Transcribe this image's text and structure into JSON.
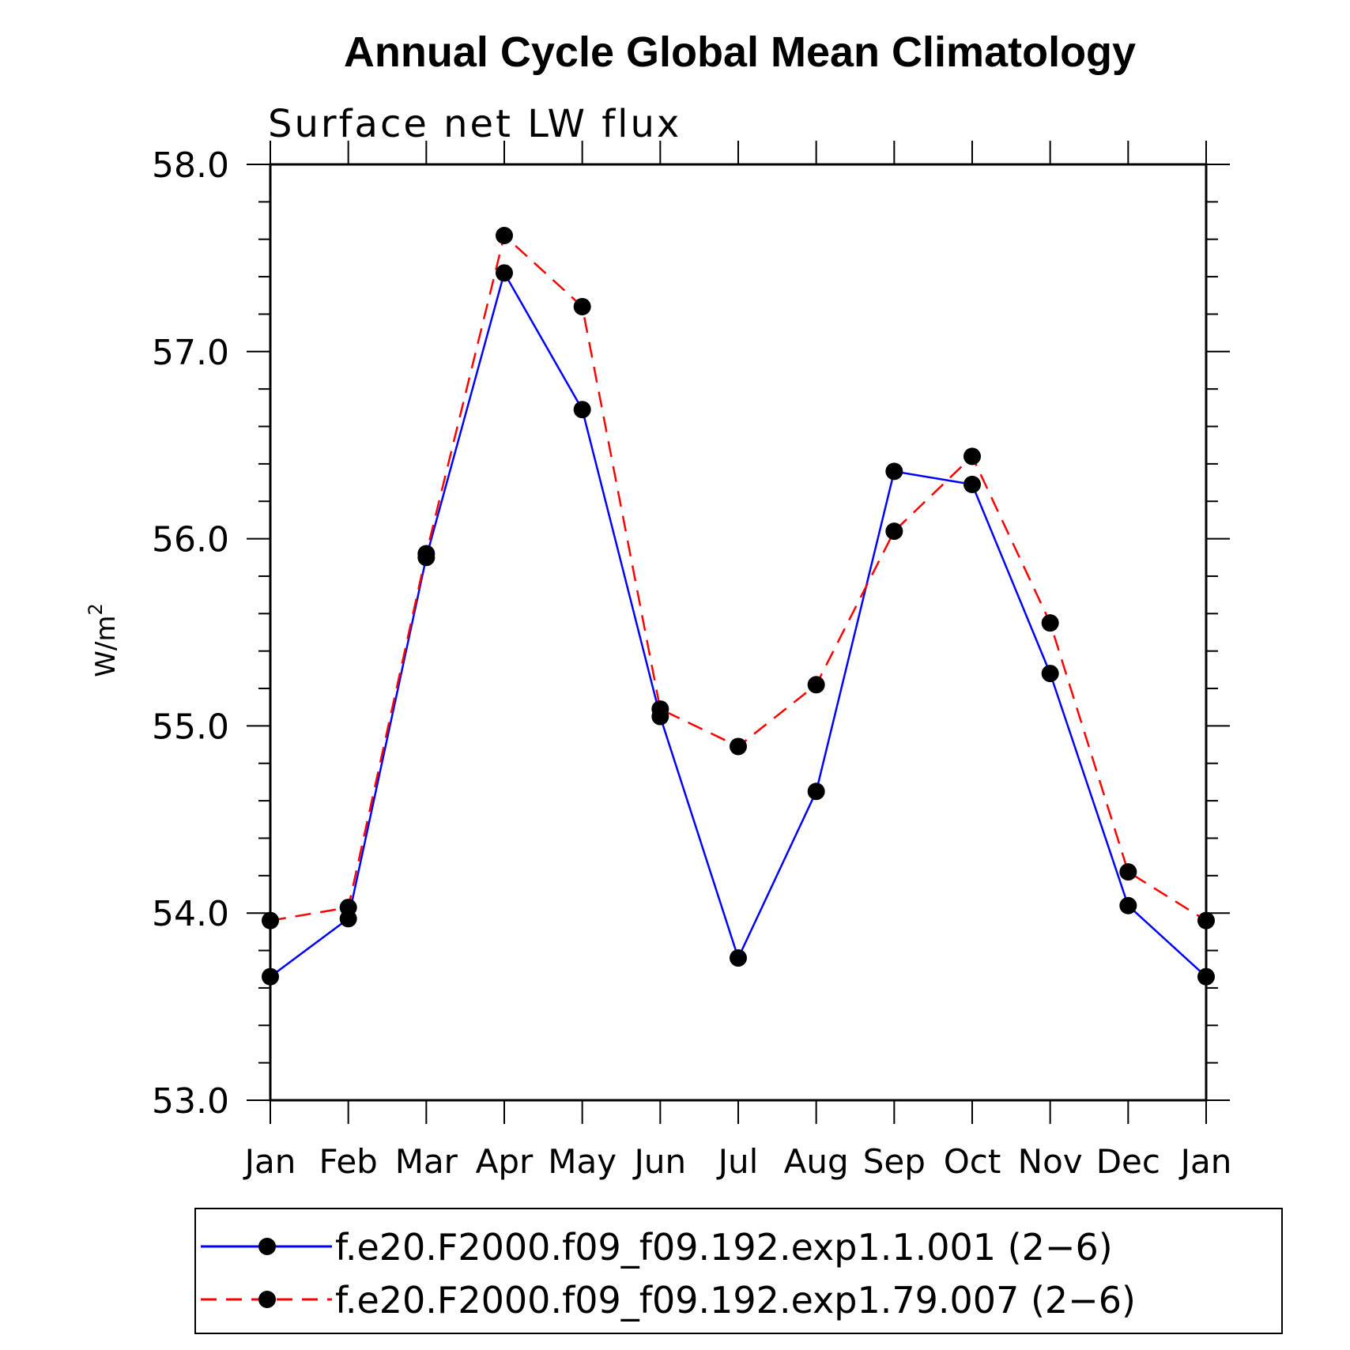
{
  "chart_data": {
    "type": "line",
    "title": "Annual Cycle Global Mean Climatology",
    "subtitle": "Surface net LW flux",
    "xlabel": "",
    "ylabel": "W/m",
    "ylabel_superscript": "2",
    "ylim": [
      53.0,
      58.0
    ],
    "y_ticks": [
      "53.0",
      "54.0",
      "55.0",
      "56.0",
      "57.0",
      "58.0"
    ],
    "y_tick_values": [
      53.0,
      54.0,
      55.0,
      56.0,
      57.0,
      58.0
    ],
    "y_minor_step": 0.2,
    "categories": [
      "Jan",
      "Feb",
      "Mar",
      "Apr",
      "May",
      "Jun",
      "Jul",
      "Aug",
      "Sep",
      "Oct",
      "Nov",
      "Dec",
      "Jan"
    ],
    "grid": false,
    "legend_position": "bottom",
    "series": [
      {
        "name": "f.e20.F2000.f09_f09.192.exp1.1.001 (2−6)",
        "color": "#0000ff",
        "dash": "solid",
        "marker_color": "#000000",
        "values": [
          53.66,
          53.97,
          55.9,
          57.42,
          56.69,
          55.05,
          53.76,
          54.65,
          56.36,
          56.29,
          55.28,
          54.04,
          53.66
        ]
      },
      {
        "name": "f.e20.F2000.f09_f09.192.exp1.79.007 (2−6)",
        "color": "#ff0000",
        "dash": "dashed",
        "marker_color": "#000000",
        "values": [
          53.96,
          54.03,
          55.92,
          57.62,
          57.24,
          55.09,
          54.89,
          55.22,
          56.04,
          56.44,
          55.55,
          54.22,
          53.96
        ]
      }
    ]
  }
}
